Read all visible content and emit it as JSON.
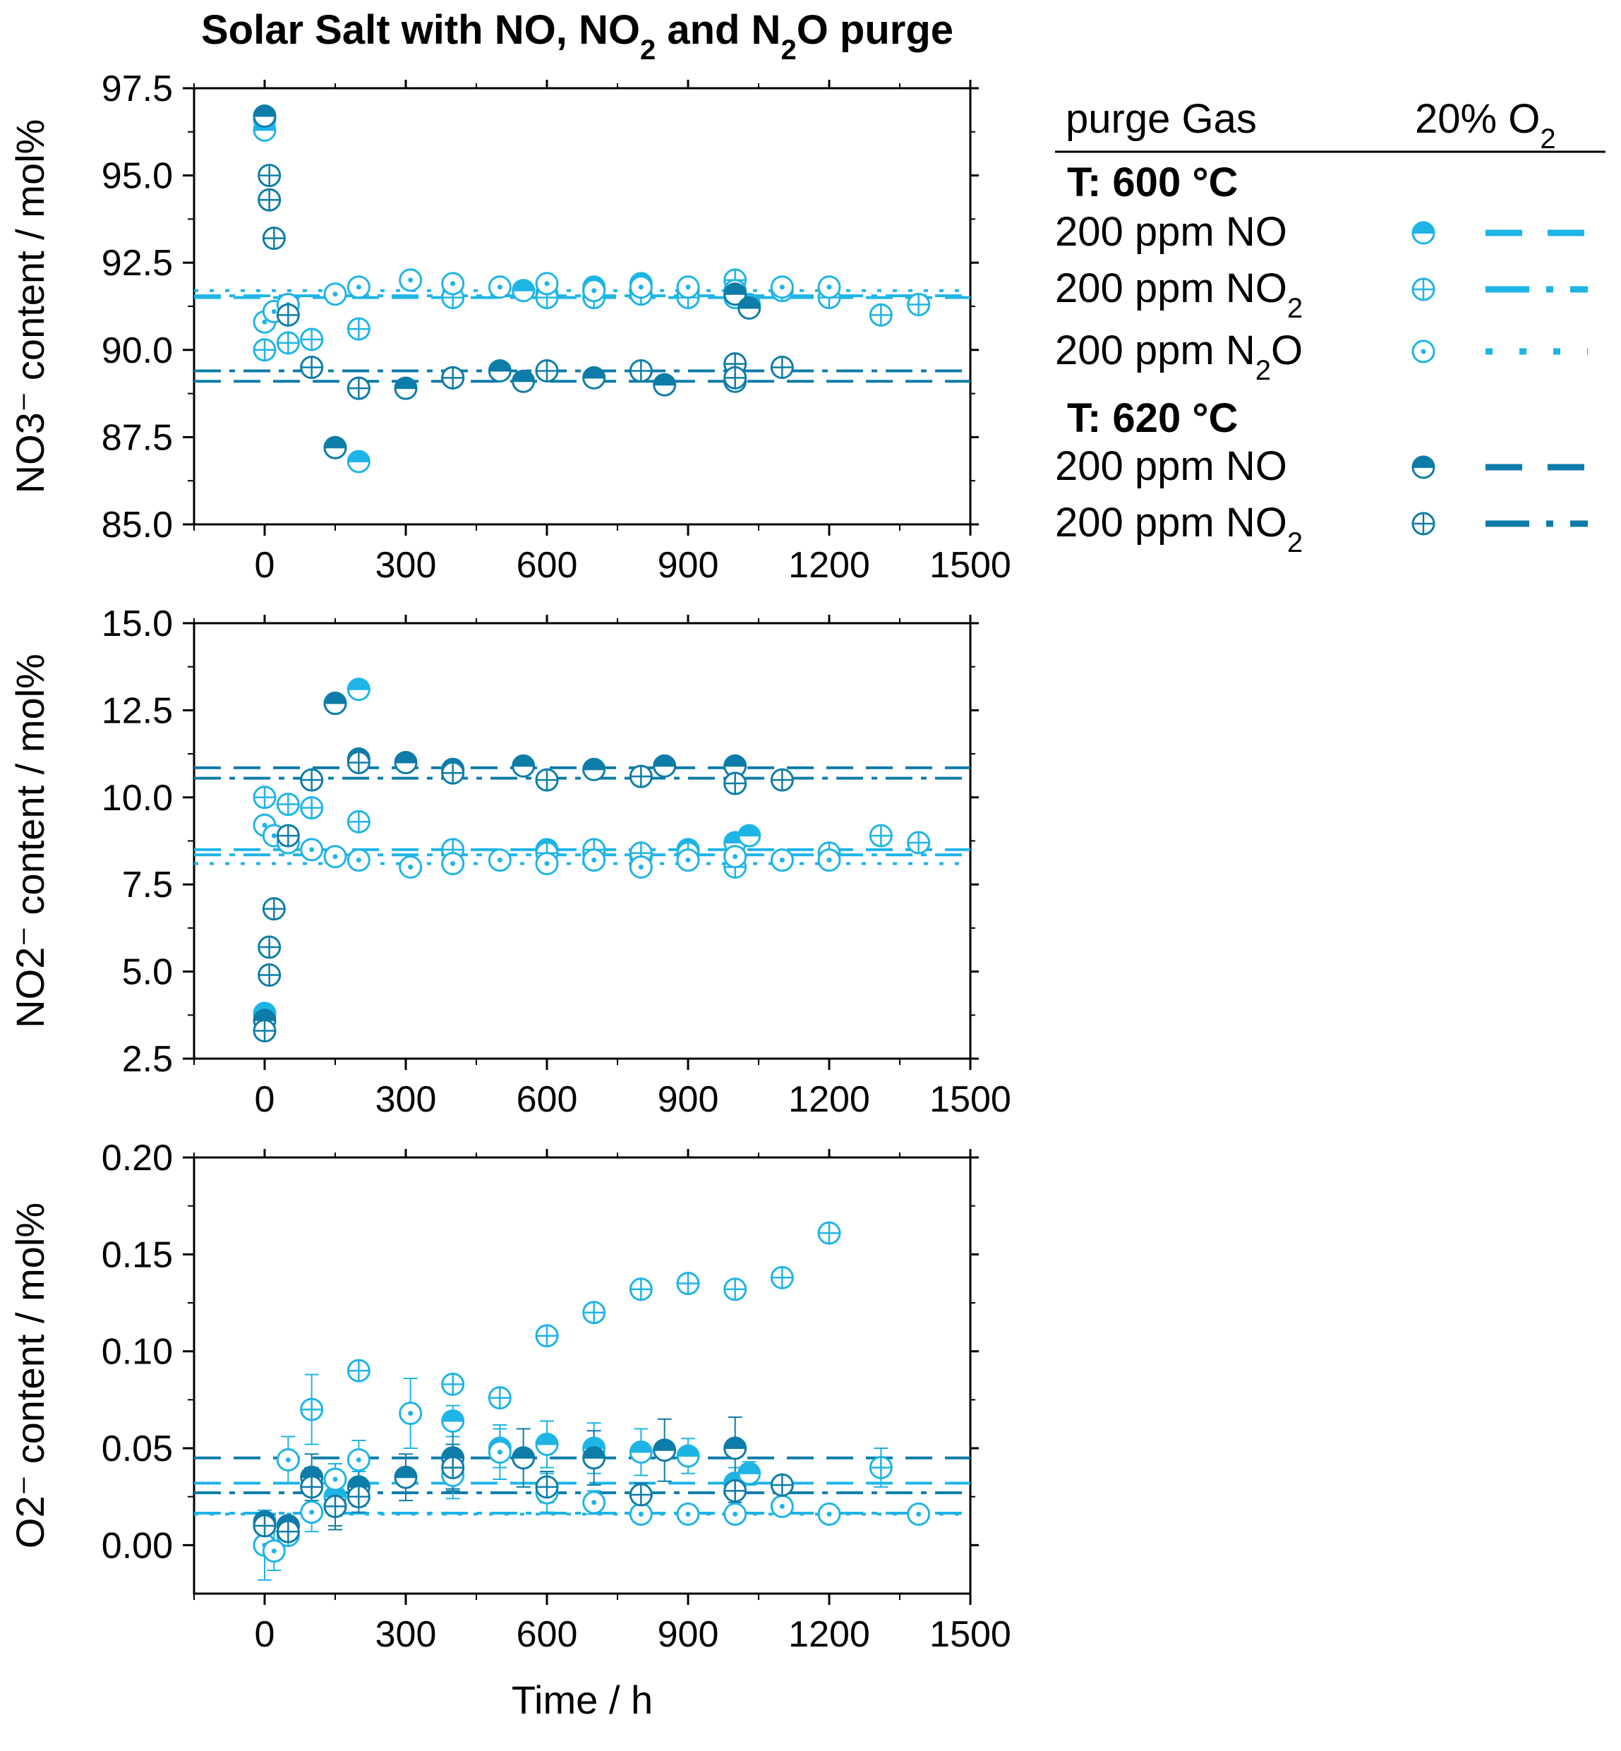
{
  "title": "Solar Salt with NO, NO2 and N2O purge",
  "colors": {
    "t600": "#1eb4e6",
    "t620": "#0e7ca8",
    "frame": "#000000"
  },
  "legend": {
    "header_left": "purge Gas",
    "header_right": "20% O2",
    "groups": [
      {
        "heading": "T: 600 °C",
        "items": [
          {
            "label": "200 ppm NO",
            "marker": "half",
            "line": "dash",
            "color_key": "t600"
          },
          {
            "label": "200 ppm NO2",
            "marker": "cross",
            "line": "dashdot",
            "color_key": "t600"
          },
          {
            "label": "200 ppm N2O",
            "marker": "dot",
            "line": "dot",
            "color_key": "t600"
          }
        ]
      },
      {
        "heading": "T: 620 °C",
        "items": [
          {
            "label": "200 ppm NO",
            "marker": "half",
            "line": "dash",
            "color_key": "t620"
          },
          {
            "label": "200 ppm NO2",
            "marker": "cross",
            "line": "dashdot",
            "color_key": "t620"
          }
        ]
      }
    ]
  },
  "chart_data": [
    {
      "type": "scatter",
      "ylabel": "NO3⁻ content / mol%",
      "xlabel": "",
      "xlim": [
        -150,
        1500
      ],
      "ylim": [
        85.0,
        97.5
      ],
      "xticks": [
        "0",
        "300",
        "600",
        "900",
        "1200",
        "1500"
      ],
      "yticks": [
        "85.0",
        "87.5",
        "90.0",
        "92.5",
        "95.0",
        "97.5"
      ],
      "series": [
        {
          "name": "600 °C, 200 ppm NO",
          "color_key": "t600",
          "marker": "half",
          "points": [
            [
              0,
              96.6
            ],
            [
              0,
              96.3
            ],
            [
              150,
              87.2
            ],
            [
              200,
              86.8
            ],
            [
              550,
              91.7
            ],
            [
              600,
              91.6
            ],
            [
              700,
              91.8
            ],
            [
              800,
              91.9
            ],
            [
              900,
              91.7
            ],
            [
              1000,
              91.5
            ],
            [
              1030,
              91.3
            ]
          ],
          "avg": 91.5,
          "line": "dash"
        },
        {
          "name": "600 °C, 200 ppm NO2",
          "color_key": "t600",
          "marker": "cross",
          "points": [
            [
              0,
              90.0
            ],
            [
              50,
              90.2
            ],
            [
              100,
              90.3
            ],
            [
              200,
              90.6
            ],
            [
              400,
              91.5
            ],
            [
              600,
              91.5
            ],
            [
              700,
              91.5
            ],
            [
              800,
              91.6
            ],
            [
              900,
              91.5
            ],
            [
              1000,
              92.0
            ],
            [
              1100,
              91.7
            ],
            [
              1200,
              91.5
            ],
            [
              1310,
              91.0
            ],
            [
              1390,
              91.3
            ]
          ],
          "avg": 91.55,
          "line": "dashdot"
        },
        {
          "name": "600 °C, 200 ppm N2O",
          "color_key": "t600",
          "marker": "dot",
          "points": [
            [
              0,
              90.8
            ],
            [
              20,
              91.1
            ],
            [
              50,
              91.3
            ],
            [
              150,
              91.6
            ],
            [
              200,
              91.8
            ],
            [
              310,
              92.0
            ],
            [
              400,
              91.9
            ],
            [
              500,
              91.8
            ],
            [
              600,
              91.9
            ],
            [
              700,
              91.7
            ],
            [
              800,
              91.8
            ],
            [
              900,
              91.8
            ],
            [
              1000,
              91.7
            ],
            [
              1100,
              91.8
            ],
            [
              1200,
              91.8
            ]
          ],
          "avg": 91.7,
          "line": "dot"
        },
        {
          "name": "620 °C, 200 ppm NO",
          "color_key": "t620",
          "marker": "half",
          "points": [
            [
              0,
              96.7
            ],
            [
              150,
              87.2
            ],
            [
              200,
              88.9
            ],
            [
              300,
              88.9
            ],
            [
              400,
              89.2
            ],
            [
              500,
              89.4
            ],
            [
              550,
              89.1
            ],
            [
              700,
              89.2
            ],
            [
              850,
              89.0
            ],
            [
              1000,
              89.1
            ],
            [
              1000,
              91.6
            ],
            [
              1030,
              91.2
            ]
          ],
          "avg": 89.1,
          "line": "dash"
        },
        {
          "name": "620 °C, 200 ppm NO2",
          "color_key": "t620",
          "marker": "cross",
          "points": [
            [
              10,
              95.0
            ],
            [
              10,
              94.3
            ],
            [
              20,
              93.2
            ],
            [
              50,
              91.0
            ],
            [
              100,
              89.5
            ],
            [
              200,
              88.9
            ],
            [
              400,
              89.2
            ],
            [
              600,
              89.4
            ],
            [
              800,
              89.4
            ],
            [
              1000,
              89.6
            ],
            [
              1000,
              89.2
            ],
            [
              1100,
              89.5
            ]
          ],
          "avg": 89.4,
          "line": "dashdot"
        }
      ]
    },
    {
      "type": "scatter",
      "ylabel": "NO2⁻ content / mol%",
      "xlabel": "",
      "xlim": [
        -150,
        1500
      ],
      "ylim": [
        2.5,
        15.0
      ],
      "xticks": [
        "0",
        "300",
        "600",
        "900",
        "1200",
        "1500"
      ],
      "yticks": [
        "2.5",
        "5.0",
        "7.5",
        "10.0",
        "12.5",
        "15.0"
      ],
      "series": [
        {
          "name": "600 °C, 200 ppm NO",
          "color_key": "t600",
          "marker": "half",
          "points": [
            [
              0,
              3.8
            ],
            [
              150,
              12.7
            ],
            [
              200,
              13.1
            ],
            [
              400,
              10.8
            ],
            [
              600,
              8.5
            ],
            [
              700,
              8.4
            ],
            [
              800,
              8.3
            ],
            [
              900,
              8.5
            ],
            [
              1000,
              8.7
            ],
            [
              1030,
              8.9
            ]
          ],
          "avg": 8.5,
          "line": "dash"
        },
        {
          "name": "600 °C, 200 ppm NO2",
          "color_key": "t600",
          "marker": "cross",
          "points": [
            [
              0,
              10.0
            ],
            [
              50,
              9.8
            ],
            [
              100,
              9.7
            ],
            [
              200,
              9.3
            ],
            [
              400,
              8.5
            ],
            [
              600,
              8.4
            ],
            [
              700,
              8.5
            ],
            [
              800,
              8.4
            ],
            [
              900,
              8.4
            ],
            [
              1000,
              8.0
            ],
            [
              1100,
              8.2
            ],
            [
              1200,
              8.4
            ],
            [
              1310,
              8.9
            ],
            [
              1390,
              8.7
            ]
          ],
          "avg": 8.35,
          "line": "dashdot"
        },
        {
          "name": "600 °C, 200 ppm N2O",
          "color_key": "t600",
          "marker": "dot",
          "points": [
            [
              0,
              9.2
            ],
            [
              20,
              8.9
            ],
            [
              50,
              8.7
            ],
            [
              100,
              8.5
            ],
            [
              150,
              8.3
            ],
            [
              200,
              8.2
            ],
            [
              310,
              8.0
            ],
            [
              400,
              8.1
            ],
            [
              500,
              8.2
            ],
            [
              600,
              8.1
            ],
            [
              700,
              8.2
            ],
            [
              800,
              8.0
            ],
            [
              900,
              8.2
            ],
            [
              1000,
              8.3
            ],
            [
              1100,
              8.2
            ],
            [
              1200,
              8.2
            ]
          ],
          "avg": 8.1,
          "line": "dot"
        },
        {
          "name": "620 °C, 200 ppm NO",
          "color_key": "t620",
          "marker": "half",
          "points": [
            [
              0,
              3.6
            ],
            [
              150,
              12.7
            ],
            [
              200,
              11.1
            ],
            [
              300,
              11.0
            ],
            [
              400,
              10.8
            ],
            [
              550,
              10.9
            ],
            [
              700,
              10.8
            ],
            [
              850,
              10.9
            ],
            [
              1000,
              10.9
            ]
          ],
          "avg": 10.85,
          "line": "dash"
        },
        {
          "name": "620 °C, 200 ppm NO2",
          "color_key": "t620",
          "marker": "cross",
          "points": [
            [
              0,
              3.3
            ],
            [
              10,
              4.9
            ],
            [
              10,
              5.7
            ],
            [
              20,
              6.8
            ],
            [
              50,
              8.9
            ],
            [
              100,
              10.5
            ],
            [
              200,
              11.0
            ],
            [
              400,
              10.7
            ],
            [
              600,
              10.5
            ],
            [
              800,
              10.6
            ],
            [
              1000,
              10.4
            ],
            [
              1100,
              10.5
            ]
          ],
          "avg": 10.55,
          "line": "dashdot"
        }
      ]
    },
    {
      "type": "scatter",
      "ylabel": "O2⁻ content / mol%",
      "xlabel": "Time / h",
      "xlim": [
        -150,
        1500
      ],
      "ylim": [
        -0.025,
        0.2
      ],
      "xticks": [
        "0",
        "300",
        "600",
        "900",
        "1200",
        "1500"
      ],
      "yticks": [
        "0.00",
        "0.05",
        "0.10",
        "0.15",
        "0.20"
      ],
      "series": [
        {
          "name": "600 °C, 200 ppm NO",
          "color_key": "t600",
          "marker": "half",
          "points": [
            [
              0,
              0.01
            ],
            [
              50,
              0.01
            ],
            [
              150,
              0.025
            ],
            [
              200,
              0.03
            ],
            [
              400,
              0.064
            ],
            [
              500,
              0.05
            ],
            [
              600,
              0.052
            ],
            [
              700,
              0.05
            ],
            [
              800,
              0.048
            ],
            [
              900,
              0.046
            ],
            [
              1000,
              0.032
            ],
            [
              1030,
              0.037
            ]
          ],
          "errors": [
            0.003,
            0.004,
            0.01,
            0.008,
            0.008,
            0.01,
            0.012,
            0.013,
            0.012,
            0.009,
            0.008,
            0.006
          ],
          "avg": 0.032,
          "line": "dash"
        },
        {
          "name": "600 °C, 200 ppm NO2",
          "color_key": "t600",
          "marker": "cross",
          "points": [
            [
              0,
              0.0
            ],
            [
              50,
              0.005
            ],
            [
              100,
              0.07
            ],
            [
              200,
              0.09
            ],
            [
              400,
              0.083
            ],
            [
              500,
              0.076
            ],
            [
              600,
              0.108
            ],
            [
              700,
              0.12
            ],
            [
              800,
              0.132
            ],
            [
              900,
              0.135
            ],
            [
              1000,
              0.132
            ],
            [
              1100,
              0.138
            ],
            [
              1200,
              0.161
            ],
            [
              1310,
              0.04
            ]
          ],
          "errors": [
            0.004,
            0.004,
            0.018,
            0.004,
            0.004,
            0.004,
            0.004,
            0.004,
            0.004,
            0.004,
            0.004,
            0.004,
            0.004,
            0.01
          ],
          "avg": 0.0165,
          "line": "dashdot"
        },
        {
          "name": "600 °C, 200 ppm N2O",
          "color_key": "t600",
          "marker": "dot",
          "points": [
            [
              0,
              0.0
            ],
            [
              20,
              -0.003
            ],
            [
              50,
              0.044
            ],
            [
              100,
              0.017
            ],
            [
              150,
              0.034
            ],
            [
              200,
              0.044
            ],
            [
              310,
              0.068
            ],
            [
              400,
              0.036
            ],
            [
              500,
              0.048
            ],
            [
              600,
              0.027
            ],
            [
              700,
              0.022
            ],
            [
              800,
              0.016
            ],
            [
              900,
              0.016
            ],
            [
              1000,
              0.016
            ],
            [
              1100,
              0.02
            ],
            [
              1200,
              0.016
            ],
            [
              1390,
              0.016
            ]
          ],
          "errors": [
            0.018,
            0.01,
            0.012,
            0.01,
            0.008,
            0.01,
            0.018,
            0.012,
            0.014,
            0.01,
            0.006,
            0.004,
            0.004,
            0.004,
            0.004,
            0.004,
            0.004
          ],
          "avg": 0.016,
          "line": "dot"
        },
        {
          "name": "620 °C, 200 ppm NO",
          "color_key": "t620",
          "marker": "half",
          "points": [
            [
              0,
              0.012
            ],
            [
              50,
              0.01
            ],
            [
              100,
              0.035
            ],
            [
              150,
              0.02
            ],
            [
              200,
              0.03
            ],
            [
              300,
              0.035
            ],
            [
              400,
              0.045
            ],
            [
              550,
              0.045
            ],
            [
              700,
              0.045
            ],
            [
              850,
              0.049
            ],
            [
              1000,
              0.05
            ]
          ],
          "errors": [
            0.004,
            0.004,
            0.012,
            0.012,
            0.01,
            0.012,
            0.016,
            0.015,
            0.014,
            0.016,
            0.016
          ],
          "avg": 0.045,
          "line": "dash"
        },
        {
          "name": "620 °C, 200 ppm NO2",
          "color_key": "t620",
          "marker": "cross",
          "points": [
            [
              0,
              0.01
            ],
            [
              50,
              0.007
            ],
            [
              100,
              0.03
            ],
            [
              150,
              0.02
            ],
            [
              200,
              0.025
            ],
            [
              400,
              0.04
            ],
            [
              600,
              0.03
            ],
            [
              800,
              0.026
            ],
            [
              1000,
              0.028
            ],
            [
              1100,
              0.031
            ]
          ],
          "errors": [
            0.004,
            0.004,
            0.01,
            0.01,
            0.008,
            0.012,
            0.008,
            0.006,
            0.006,
            0.004
          ],
          "avg": 0.027,
          "line": "dashdot"
        }
      ]
    }
  ]
}
